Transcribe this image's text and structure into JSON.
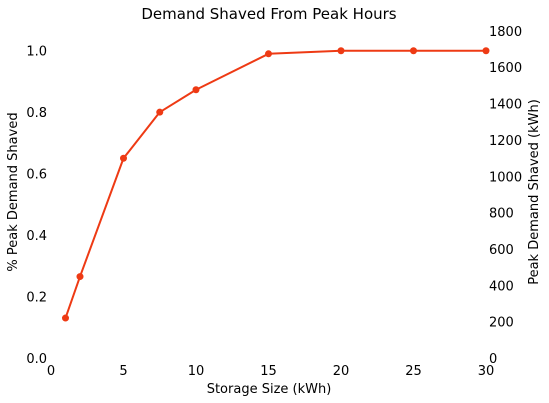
{
  "chart_data": {
    "type": "line",
    "title": "Demand Shaved From Peak Hours",
    "xlabel": "Storage Size (kWh)",
    "ylabel": "% Peak Demand Shaved",
    "y2label": "Peak Demand Shaved (kWh)",
    "xlim": [
      0,
      30
    ],
    "ylim": [
      0,
      1.1
    ],
    "y2lim": [
      0,
      1860
    ],
    "xticks": [
      0,
      5,
      10,
      15,
      20,
      25,
      30
    ],
    "xtick_labels": [
      "0",
      "5",
      "10",
      "15",
      "20",
      "25",
      "30"
    ],
    "yticks": [
      0,
      0.2,
      0.4,
      0.6,
      0.8,
      1.0
    ],
    "ytick_labels": [
      "0.0",
      "0.2",
      "0.4",
      "0.6",
      "0.8",
      "1.0"
    ],
    "y2ticks": [
      0,
      200,
      400,
      600,
      800,
      1000,
      1200,
      1400,
      1600,
      1800
    ],
    "y2tick_labels": [
      "0",
      "200",
      "400",
      "600",
      "800",
      "1000",
      "1200",
      "1400",
      "1600",
      "1800"
    ],
    "grid": false,
    "series": [
      {
        "color": "#ee3a14",
        "x": [
          1,
          2,
          5,
          7.5,
          10,
          15,
          20,
          25,
          30
        ],
        "y": [
          0.13,
          0.265,
          0.65,
          0.8,
          0.873,
          0.99,
          1.0,
          1.0,
          1.0
        ]
      }
    ]
  }
}
